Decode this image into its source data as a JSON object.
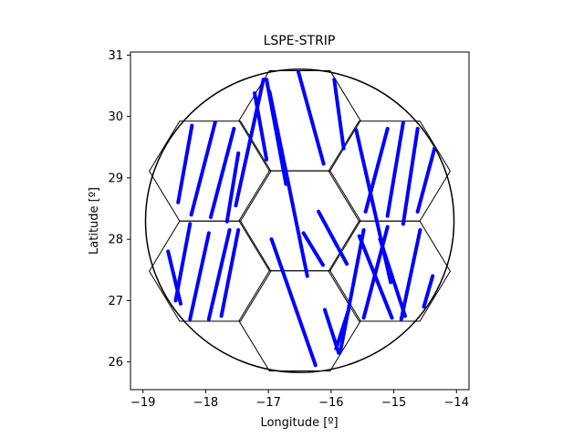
{
  "chart_data": {
    "type": "scatter",
    "title": "LSPE-STRIP",
    "xlabel": "Longitude [º]",
    "ylabel": "Latitude [º]",
    "xlim": [
      -19.2,
      -13.8
    ],
    "ylim": [
      25.55,
      31.05
    ],
    "xticks": [
      -19,
      -18,
      -17,
      -16,
      -15,
      -14
    ],
    "yticks": [
      26,
      27,
      28,
      29,
      30,
      31
    ],
    "xtick_labels": [
      "−19",
      "−18",
      "−17",
      "−16",
      "−15",
      "−14"
    ],
    "ytick_labels": [
      "26",
      "27",
      "28",
      "29",
      "30",
      "31"
    ],
    "grid": false,
    "colors": {
      "points": "#0000ff",
      "outline": "#000000"
    },
    "circle": {
      "center": [
        -16.5,
        28.3
      ],
      "radius_x": 2.46,
      "radius_y": 2.47
    },
    "hexagons": [
      {
        "center": [
          -16.5,
          29.93
        ]
      },
      {
        "center": [
          -16.5,
          28.3
        ]
      },
      {
        "center": [
          -16.5,
          26.67
        ]
      },
      {
        "center": [
          -17.93,
          29.11
        ]
      },
      {
        "center": [
          -15.07,
          29.11
        ]
      },
      {
        "center": [
          -17.93,
          27.48
        ]
      },
      {
        "center": [
          -15.07,
          27.48
        ]
      }
    ],
    "hexagon_size": {
      "half_width": 0.97,
      "half_height": 0.815
    },
    "series": [
      {
        "values_note": "",
        "segments": [
          {
            "start": [
              -18.44,
              28.6
            ],
            "end": [
              -18.22,
              29.85
            ]
          },
          {
            "start": [
              -18.23,
              28.4
            ],
            "end": [
              -17.85,
              29.9
            ]
          },
          {
            "start": [
              -17.92,
              28.36
            ],
            "end": [
              -17.55,
              29.8
            ]
          },
          {
            "start": [
              -17.66,
              28.29
            ],
            "end": [
              -17.48,
              29.4
            ]
          },
          {
            "start": [
              -18.6,
              27.8
            ],
            "end": [
              -18.4,
              26.95
            ]
          },
          {
            "start": [
              -18.48,
              27.0
            ],
            "end": [
              -18.25,
              28.25
            ]
          },
          {
            "start": [
              -18.25,
              26.7
            ],
            "end": [
              -17.95,
              28.1
            ]
          },
          {
            "start": [
              -17.95,
              26.7
            ],
            "end": [
              -17.62,
              28.15
            ]
          },
          {
            "start": [
              -17.75,
              26.75
            ],
            "end": [
              -17.48,
              28.15
            ]
          },
          {
            "start": [
              -17.52,
              28.55
            ],
            "end": [
              -17.08,
              30.6
            ]
          },
          {
            "start": [
              -17.22,
              30.38
            ],
            "end": [
              -17.03,
              29.3
            ]
          },
          {
            "start": [
              -17.03,
              30.6
            ],
            "end": [
              -16.72,
              28.9
            ]
          },
          {
            "start": [
              -16.98,
              30.4
            ],
            "end": [
              -16.38,
              27.4
            ]
          },
          {
            "start": [
              -16.52,
              30.72
            ],
            "end": [
              -16.12,
              29.23
            ]
          },
          {
            "start": [
              -15.95,
              30.6
            ],
            "end": [
              -15.8,
              29.48
            ]
          },
          {
            "start": [
              -16.2,
              28.45
            ],
            "end": [
              -15.75,
              27.6
            ]
          },
          {
            "start": [
              -16.44,
              28.1
            ],
            "end": [
              -16.13,
              27.58
            ]
          },
          {
            "start": [
              -16.95,
              28.0
            ],
            "end": [
              -16.25,
              25.95
            ]
          },
          {
            "start": [
              -16.1,
              26.85
            ],
            "end": [
              -15.88,
              26.15
            ]
          },
          {
            "start": [
              -15.92,
              26.22
            ],
            "end": [
              -15.72,
              26.85
            ]
          },
          {
            "start": [
              -15.6,
              29.78
            ],
            "end": [
              -15.05,
              27.3
            ]
          },
          {
            "start": [
              -15.45,
              28.45
            ],
            "end": [
              -15.1,
              29.8
            ]
          },
          {
            "start": [
              -15.1,
              28.38
            ],
            "end": [
              -14.85,
              29.9
            ]
          },
          {
            "start": [
              -14.85,
              28.25
            ],
            "end": [
              -14.62,
              29.8
            ]
          },
          {
            "start": [
              -14.62,
              28.45
            ],
            "end": [
              -14.35,
              29.48
            ]
          },
          {
            "start": [
              -15.55,
              28.05
            ],
            "end": [
              -15.03,
              26.72
            ]
          },
          {
            "start": [
              -15.85,
              26.18
            ],
            "end": [
              -15.48,
              28.15
            ]
          },
          {
            "start": [
              -15.48,
              26.72
            ],
            "end": [
              -15.1,
              28.2
            ]
          },
          {
            "start": [
              -15.22,
              28.0
            ],
            "end": [
              -14.82,
              26.75
            ]
          },
          {
            "start": [
              -14.88,
              26.7
            ],
            "end": [
              -14.58,
              28.15
            ]
          },
          {
            "start": [
              -14.52,
              26.9
            ],
            "end": [
              -14.38,
              27.4
            ]
          }
        ]
      }
    ]
  }
}
